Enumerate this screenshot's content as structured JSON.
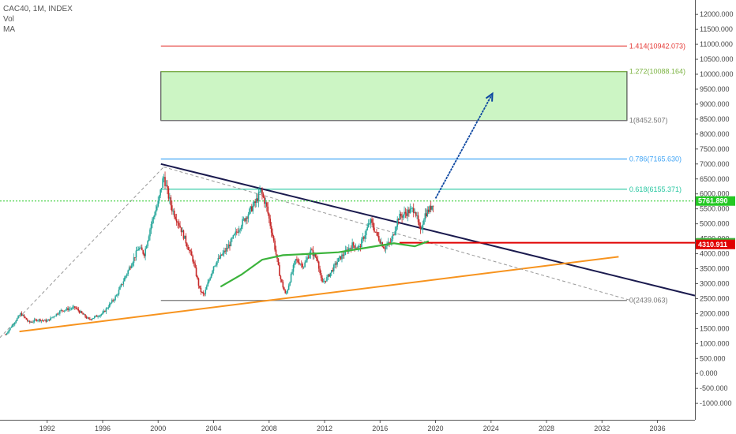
{
  "header": {
    "symbol": "CAC40, 1M, INDEX",
    "study1": "Vol",
    "study2": "MA"
  },
  "colors": {
    "up": "#26a69a",
    "down": "#c62828",
    "trend_dark": "#1a1a4e",
    "trend_orange": "#f7931e",
    "ma_green": "#3bb33b",
    "price_line": "#23c823",
    "fib_red": "#e53935",
    "fib_green": "#7cb342",
    "fib_gray": "#777777",
    "fib_blue": "#42a5f5",
    "fib_teal": "#26c6a0",
    "target_zone": "#ccf5c4",
    "arrow": "#0d47a1",
    "support_red": "#e00000"
  },
  "chart_data": {
    "type": "candlestick",
    "title": "CAC40, 1M, INDEX",
    "xlabel": "",
    "ylabel": "",
    "x_ticks": [
      "1992",
      "1996",
      "2000",
      "2004",
      "2008",
      "2012",
      "2016",
      "2020",
      "2024",
      "2028",
      "2032",
      "2036"
    ],
    "y_ticks": [
      "12000.000",
      "11500.000",
      "11000.000",
      "10500.000",
      "10000.000",
      "9500.000",
      "9000.000",
      "8500.000",
      "8000.000",
      "7500.000",
      "7000.000",
      "6500.000",
      "6000.000",
      "5500.000",
      "5000.000",
      "4500.000",
      "4000.000",
      "3500.000",
      "3000.000",
      "2500.000",
      "2000.000",
      "1500.000",
      "1000.000",
      "500.000",
      "0.000",
      "-500.000",
      "-1000.000"
    ],
    "ylim": [
      -1550,
      12480
    ],
    "xlim": [
      1988.6,
      2038.7
    ],
    "price_path": [
      [
        1989.0,
        1300
      ],
      [
        1990.1,
        2000
      ],
      [
        1990.7,
        1700
      ],
      [
        1991.3,
        1800
      ],
      [
        1992.0,
        1750
      ],
      [
        1993.0,
        2100
      ],
      [
        1994.0,
        2200
      ],
      [
        1995.0,
        1800
      ],
      [
        1996.0,
        2000
      ],
      [
        1997.0,
        2600
      ],
      [
        1998.0,
        3600
      ],
      [
        1998.6,
        4200
      ],
      [
        1999.0,
        4000
      ],
      [
        1999.5,
        5000
      ],
      [
        2000.0,
        5700
      ],
      [
        2000.4,
        6600
      ],
      [
        2000.7,
        6000
      ],
      [
        2001.0,
        5500
      ],
      [
        2001.5,
        5000
      ],
      [
        2002.0,
        4400
      ],
      [
        2002.5,
        3800
      ],
      [
        2003.0,
        2800
      ],
      [
        2003.3,
        2600
      ],
      [
        2004.0,
        3600
      ],
      [
        2005.0,
        4200
      ],
      [
        2006.0,
        5000
      ],
      [
        2007.0,
        5700
      ],
      [
        2007.4,
        6100
      ],
      [
        2007.8,
        5600
      ],
      [
        2008.3,
        4500
      ],
      [
        2008.8,
        3200
      ],
      [
        2009.2,
        2600
      ],
      [
        2009.9,
        3800
      ],
      [
        2010.5,
        3600
      ],
      [
        2011.0,
        4100
      ],
      [
        2011.5,
        3800
      ],
      [
        2011.8,
        3000
      ],
      [
        2012.2,
        3200
      ],
      [
        2013.0,
        3800
      ],
      [
        2014.0,
        4300
      ],
      [
        2014.5,
        4200
      ],
      [
        2015.3,
        5100
      ],
      [
        2015.8,
        4600
      ],
      [
        2016.3,
        4200
      ],
      [
        2016.8,
        4400
      ],
      [
        2017.3,
        5200
      ],
      [
        2018.0,
        5400
      ],
      [
        2018.5,
        5500
      ],
      [
        2018.9,
        4700
      ],
      [
        2019.2,
        5300
      ],
      [
        2019.6,
        5500
      ],
      [
        2019.9,
        5762
      ]
    ],
    "moving_average": [
      [
        2004.5,
        2900
      ],
      [
        2006.0,
        3300
      ],
      [
        2007.5,
        3800
      ],
      [
        2009.0,
        3950
      ],
      [
        2011.0,
        4000
      ],
      [
        2013.0,
        4050
      ],
      [
        2015.0,
        4200
      ],
      [
        2017.0,
        4350
      ],
      [
        2018.5,
        4250
      ],
      [
        2019.5,
        4420
      ]
    ],
    "fibonacci_levels": [
      {
        "ratio": "1.414",
        "value": "10942.073",
        "y": 10942.073,
        "color": "#e53935"
      },
      {
        "ratio": "1.272",
        "value": "10088.164",
        "y": 10088.164,
        "color": "#7cb342"
      },
      {
        "ratio": "1",
        "value": "8452.507",
        "y": 8452.507,
        "color": "#777777"
      },
      {
        "ratio": "0.786",
        "value": "7165.630",
        "y": 7165.63,
        "color": "#42a5f5"
      },
      {
        "ratio": "0.618",
        "value": "6155.371",
        "y": 6155.371,
        "color": "#26c6a0"
      },
      {
        "ratio": "0",
        "value": "2439.063",
        "y": 2439.063,
        "color": "#777777"
      }
    ],
    "fib_x_range": [
      2000.2,
      2033.8
    ],
    "target_zone": {
      "x": [
        2000.2,
        2033.8
      ],
      "y": [
        8452.507,
        10088.164
      ]
    },
    "trendlines": [
      {
        "name": "descending",
        "from": [
          2000.2,
          7000
        ],
        "to": [
          2038.7,
          2600
        ],
        "color": "#1a1a4e"
      },
      {
        "name": "ascending",
        "from": [
          1990.0,
          1400
        ],
        "to": [
          2033.2,
          3900
        ],
        "color": "#f7931e"
      },
      {
        "name": "dashed-up",
        "from": [
          1988.6,
          1200
        ],
        "to": [
          2000.4,
          6900
        ],
        "color": "#999999",
        "dashed": true
      },
      {
        "name": "dashed-down",
        "from": [
          2000.4,
          6900
        ],
        "to": [
          2034.0,
          2450
        ],
        "color": "#999999",
        "dashed": true
      }
    ],
    "support_line": {
      "from": [
        2017.4,
        4366
      ],
      "to": [
        2038.7,
        4366
      ],
      "color": "#e00000"
    },
    "price_level_line": 5761.89,
    "arrow": {
      "from": [
        2020.0,
        5850
      ],
      "to": [
        2024.1,
        9350
      ]
    },
    "price_tags": [
      {
        "label": "5761.890",
        "y": 5761.89,
        "bg": "#23c823"
      },
      {
        "label": "4366.134",
        "y": 4366.134,
        "bg": "#3bb33b"
      },
      {
        "label": "4310.911",
        "y": 4310.911,
        "bg": "#e00000"
      }
    ]
  }
}
